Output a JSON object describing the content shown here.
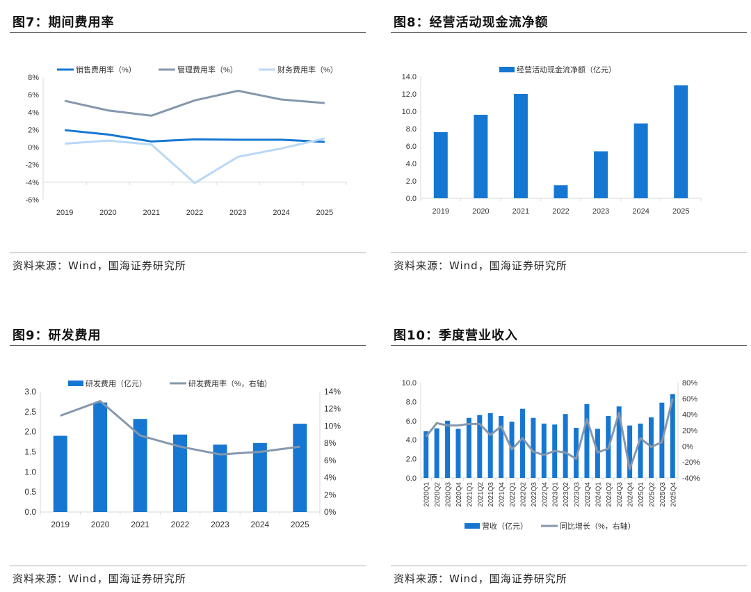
{
  "panels": [
    {
      "title": "图7：期间费用率",
      "source": "资料来源：Wind，国海证券研究所"
    },
    {
      "title": "图8：经营活动现金流净额",
      "source": "资料来源：Wind，国海证券研究所"
    },
    {
      "title": "图9：研发费用",
      "source": "资料来源：Wind，国海证券研究所"
    },
    {
      "title": "图10：季度营业收入",
      "source": "资料来源：Wind，国海证券研究所"
    }
  ],
  "colors": {
    "blue": "#1677d2",
    "gray": "#8597ad",
    "light": "#b8d8f5"
  },
  "chart_data": [
    {
      "type": "line",
      "title": "期间费用率",
      "categories": [
        "2019",
        "2020",
        "2021",
        "2022",
        "2023",
        "2024",
        "2025"
      ],
      "ylim": [
        -6,
        8
      ],
      "yticks": [
        -6,
        -4,
        -2,
        0,
        2,
        4,
        6,
        8
      ],
      "ytick_labels": [
        "-6%",
        "-4%",
        "-2%",
        "0%",
        "2%",
        "4%",
        "6%",
        "8%"
      ],
      "legend_position": "top",
      "series": [
        {
          "name": "销售费用率（%）",
          "kind": "line",
          "color": "#1677d2",
          "values": [
            1.95,
            1.45,
            0.65,
            0.9,
            0.85,
            0.85,
            0.6
          ]
        },
        {
          "name": "管理费用率（%）",
          "kind": "line",
          "color": "#8597ad",
          "values": [
            5.3,
            4.2,
            3.6,
            5.35,
            6.45,
            5.45,
            5.05
          ]
        },
        {
          "name": "财务费用率（%）",
          "kind": "line",
          "color": "#b8d8f5",
          "values": [
            0.4,
            0.75,
            0.3,
            -4.1,
            -1.1,
            -0.15,
            1.0
          ]
        }
      ]
    },
    {
      "type": "bar",
      "title": "经营活动现金流净额",
      "categories": [
        "2019",
        "2020",
        "2021",
        "2022",
        "2023",
        "2024",
        "2025"
      ],
      "ylim": [
        0,
        14
      ],
      "yticks": [
        0,
        2,
        4,
        6,
        8,
        10,
        12,
        14
      ],
      "ytick_labels": [
        "0.0",
        "2.0",
        "4.0",
        "6.0",
        "8.0",
        "10.0",
        "12.0",
        "14.0"
      ],
      "legend_position": "top",
      "series": [
        {
          "name": "经营活动现金流净额（亿元）",
          "kind": "bar",
          "color": "#1677d2",
          "values": [
            7.6,
            9.6,
            12.0,
            1.5,
            5.4,
            8.6,
            13.0
          ]
        }
      ]
    },
    {
      "type": "bar",
      "title": "研发费用",
      "categories": [
        "2019",
        "2020",
        "2021",
        "2022",
        "2023",
        "2024",
        "2025"
      ],
      "ylim": [
        0,
        3
      ],
      "yticks": [
        0,
        0.5,
        1,
        1.5,
        2,
        2.5,
        3
      ],
      "ytick_labels": [
        "0.0",
        "0.5",
        "1.0",
        "1.5",
        "2.0",
        "2.5",
        "3.0"
      ],
      "y2lim": [
        0,
        14
      ],
      "y2ticks": [
        0,
        2,
        4,
        6,
        8,
        10,
        12,
        14
      ],
      "y2tick_labels": [
        "0%",
        "2%",
        "4%",
        "6%",
        "8%",
        "10%",
        "12%",
        "14%"
      ],
      "legend_position": "top",
      "series": [
        {
          "name": "研发费用（亿元）",
          "kind": "bar",
          "color": "#1677d2",
          "values": [
            1.9,
            2.73,
            2.32,
            1.93,
            1.68,
            1.72,
            2.2
          ]
        },
        {
          "name": "研发费用率（%，右轴）",
          "kind": "line",
          "axis": "right",
          "color": "#8597ad",
          "values": [
            11.2,
            12.9,
            8.9,
            7.6,
            6.7,
            7.0,
            7.6
          ]
        }
      ]
    },
    {
      "type": "bar",
      "title": "季度营业收入",
      "categories": [
        "2020Q1",
        "2020Q2",
        "2020Q3",
        "2020Q4",
        "2021Q1",
        "2021Q2",
        "2021Q3",
        "2021Q4",
        "2022Q1",
        "2022Q2",
        "2022Q3",
        "2022Q4",
        "2023Q1",
        "2023Q2",
        "2023Q3",
        "2023Q4",
        "2024Q1",
        "2024Q2",
        "2024Q3",
        "2024Q4",
        "2025Q1",
        "2025Q2",
        "2025Q3",
        "2025Q4"
      ],
      "ylim": [
        0,
        10
      ],
      "yticks": [
        0,
        2,
        4,
        6,
        8,
        10
      ],
      "ytick_labels": [
        "0.0",
        "2.0",
        "4.0",
        "6.0",
        "8.0",
        "10.0"
      ],
      "y2lim": [
        -40,
        80
      ],
      "y2ticks": [
        -40,
        -20,
        0,
        20,
        40,
        60,
        80
      ],
      "y2tick_labels": [
        "-40%",
        "-20%",
        "0%",
        "20%",
        "40%",
        "60%",
        "80%"
      ],
      "legend_position": "bottom",
      "series": [
        {
          "name": "营收（亿元）",
          "kind": "bar",
          "color": "#1677d2",
          "values": [
            4.9,
            5.2,
            6.0,
            5.15,
            6.3,
            6.6,
            6.8,
            6.5,
            5.9,
            7.25,
            6.3,
            5.7,
            5.6,
            6.7,
            5.25,
            7.75,
            5.15,
            6.5,
            7.5,
            5.5,
            5.7,
            6.35,
            7.9,
            8.8
          ]
        },
        {
          "name": "同比增长（%，右轴）",
          "kind": "line",
          "axis": "right",
          "color": "#8597ad",
          "values": [
            12,
            29,
            26,
            26,
            28,
            28,
            14,
            25,
            -4,
            10,
            -7,
            -11,
            -6,
            -8,
            -16,
            34,
            -8,
            -3,
            42,
            -29,
            10,
            -1,
            5,
            60
          ]
        }
      ]
    }
  ]
}
